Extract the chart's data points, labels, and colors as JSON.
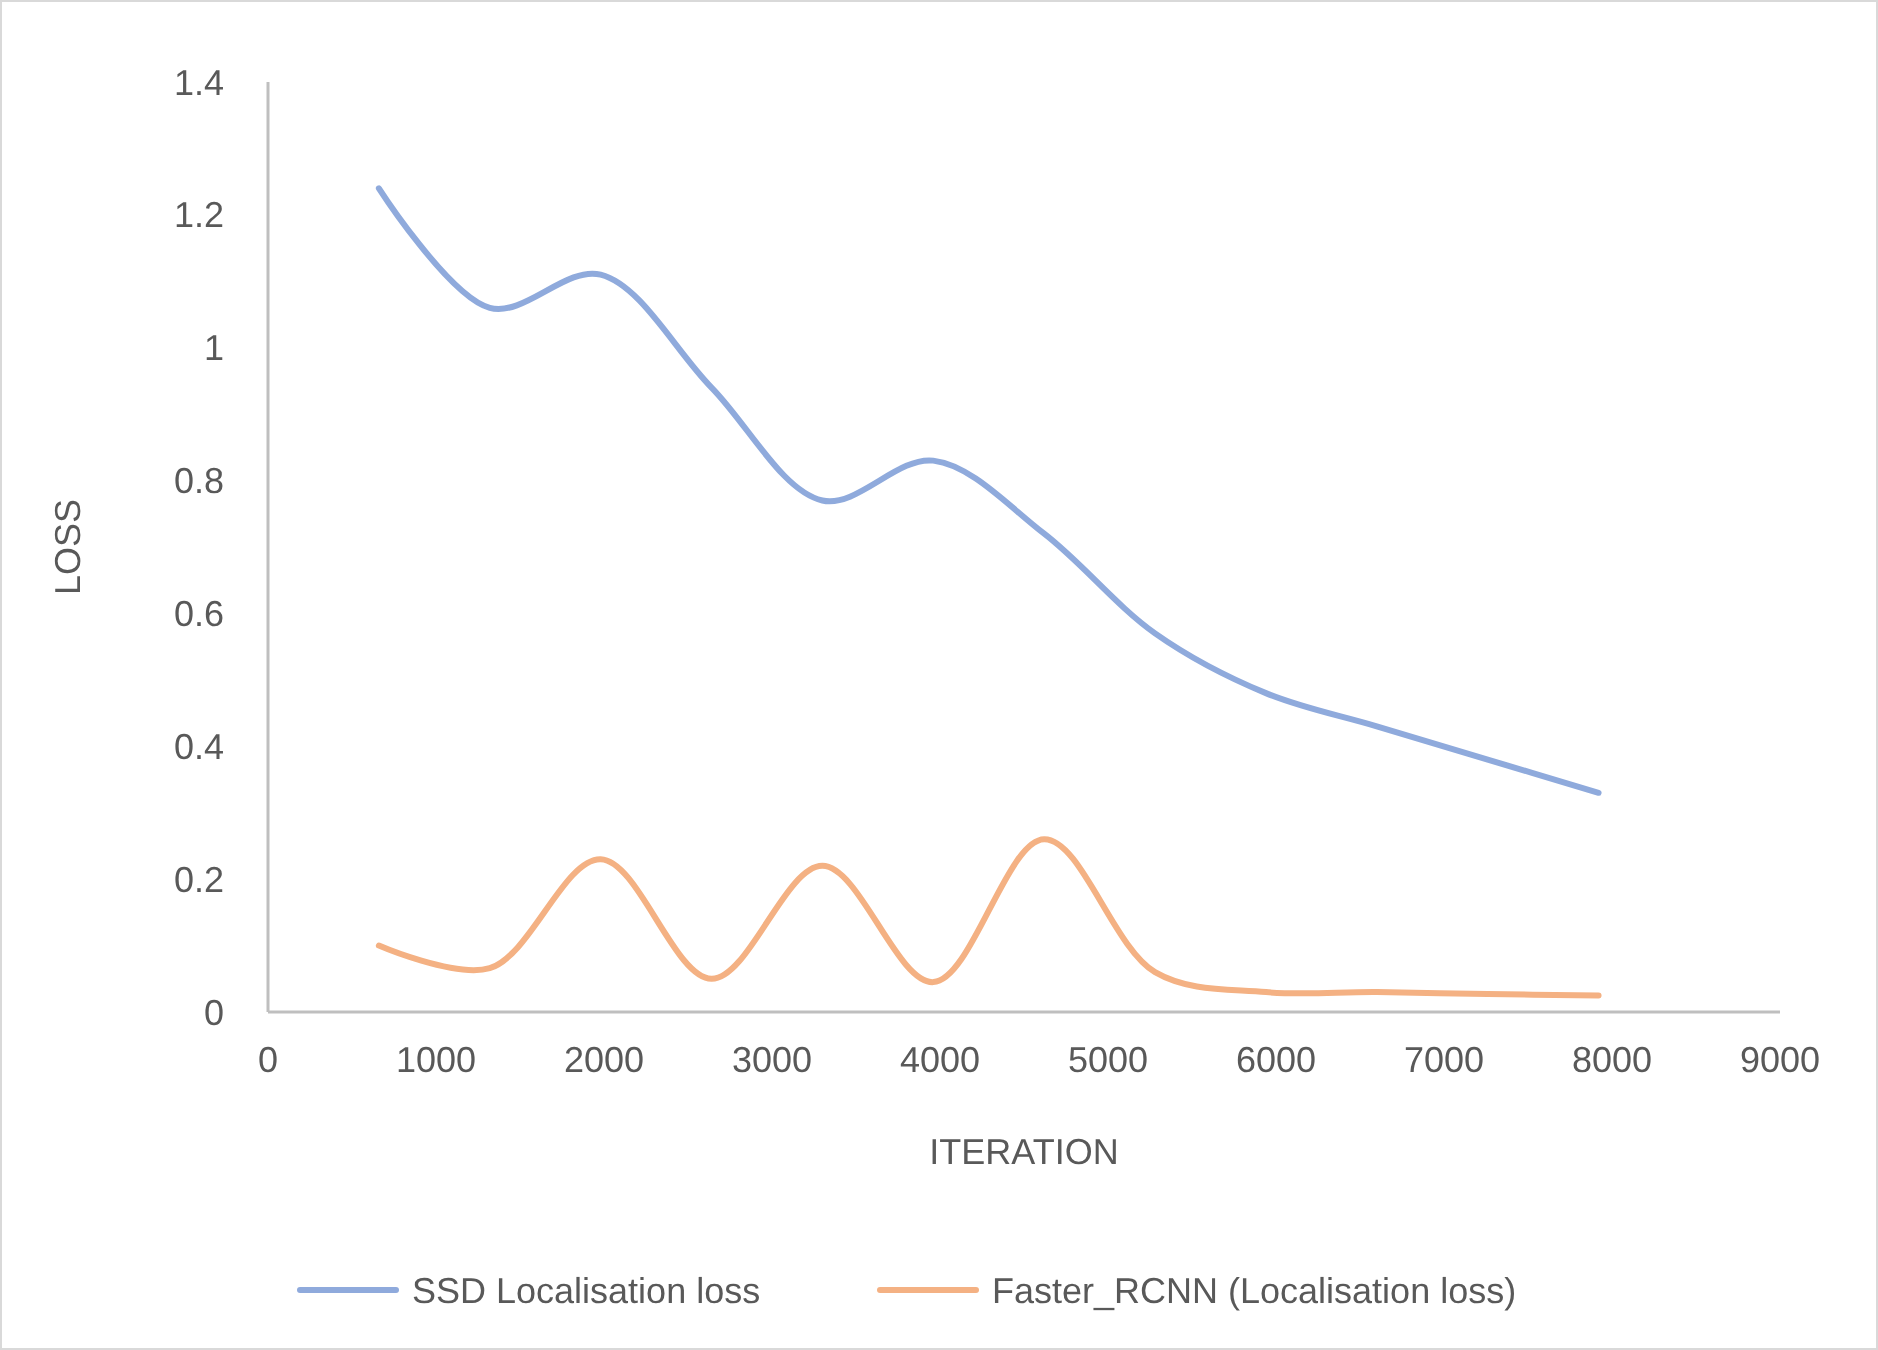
{
  "chart_data": {
    "type": "line",
    "xlabel": "ITERATION",
    "ylabel": "LOSS",
    "x": [
      660,
      1320,
      1980,
      2640,
      3300,
      3960,
      4620,
      5280,
      5940,
      6600,
      7260,
      7920
    ],
    "series": [
      {
        "name": "SSD Localisation loss",
        "color": "#8faadc",
        "values": [
          1.24,
          1.06,
          1.11,
          0.94,
          0.77,
          0.83,
          0.72,
          0.57,
          0.48,
          0.43,
          0.38,
          0.33
        ]
      },
      {
        "name": "Faster_RCNN (Localisation loss)",
        "color": "#f4b183",
        "values": [
          0.1,
          0.066,
          0.23,
          0.05,
          0.22,
          0.045,
          0.26,
          0.06,
          0.03,
          0.03,
          0.027,
          0.025
        ]
      }
    ],
    "xlim": [
      0,
      9000
    ],
    "xticks": [
      0,
      1000,
      2000,
      3000,
      4000,
      5000,
      6000,
      7000,
      8000,
      9000
    ],
    "ylim": [
      0,
      1.4
    ],
    "yticks": [
      0,
      0.2,
      0.4,
      0.6,
      0.8,
      1,
      1.2,
      1.4
    ],
    "legend": "bottom",
    "marker": "none",
    "line_style": "solid",
    "grid": false
  }
}
